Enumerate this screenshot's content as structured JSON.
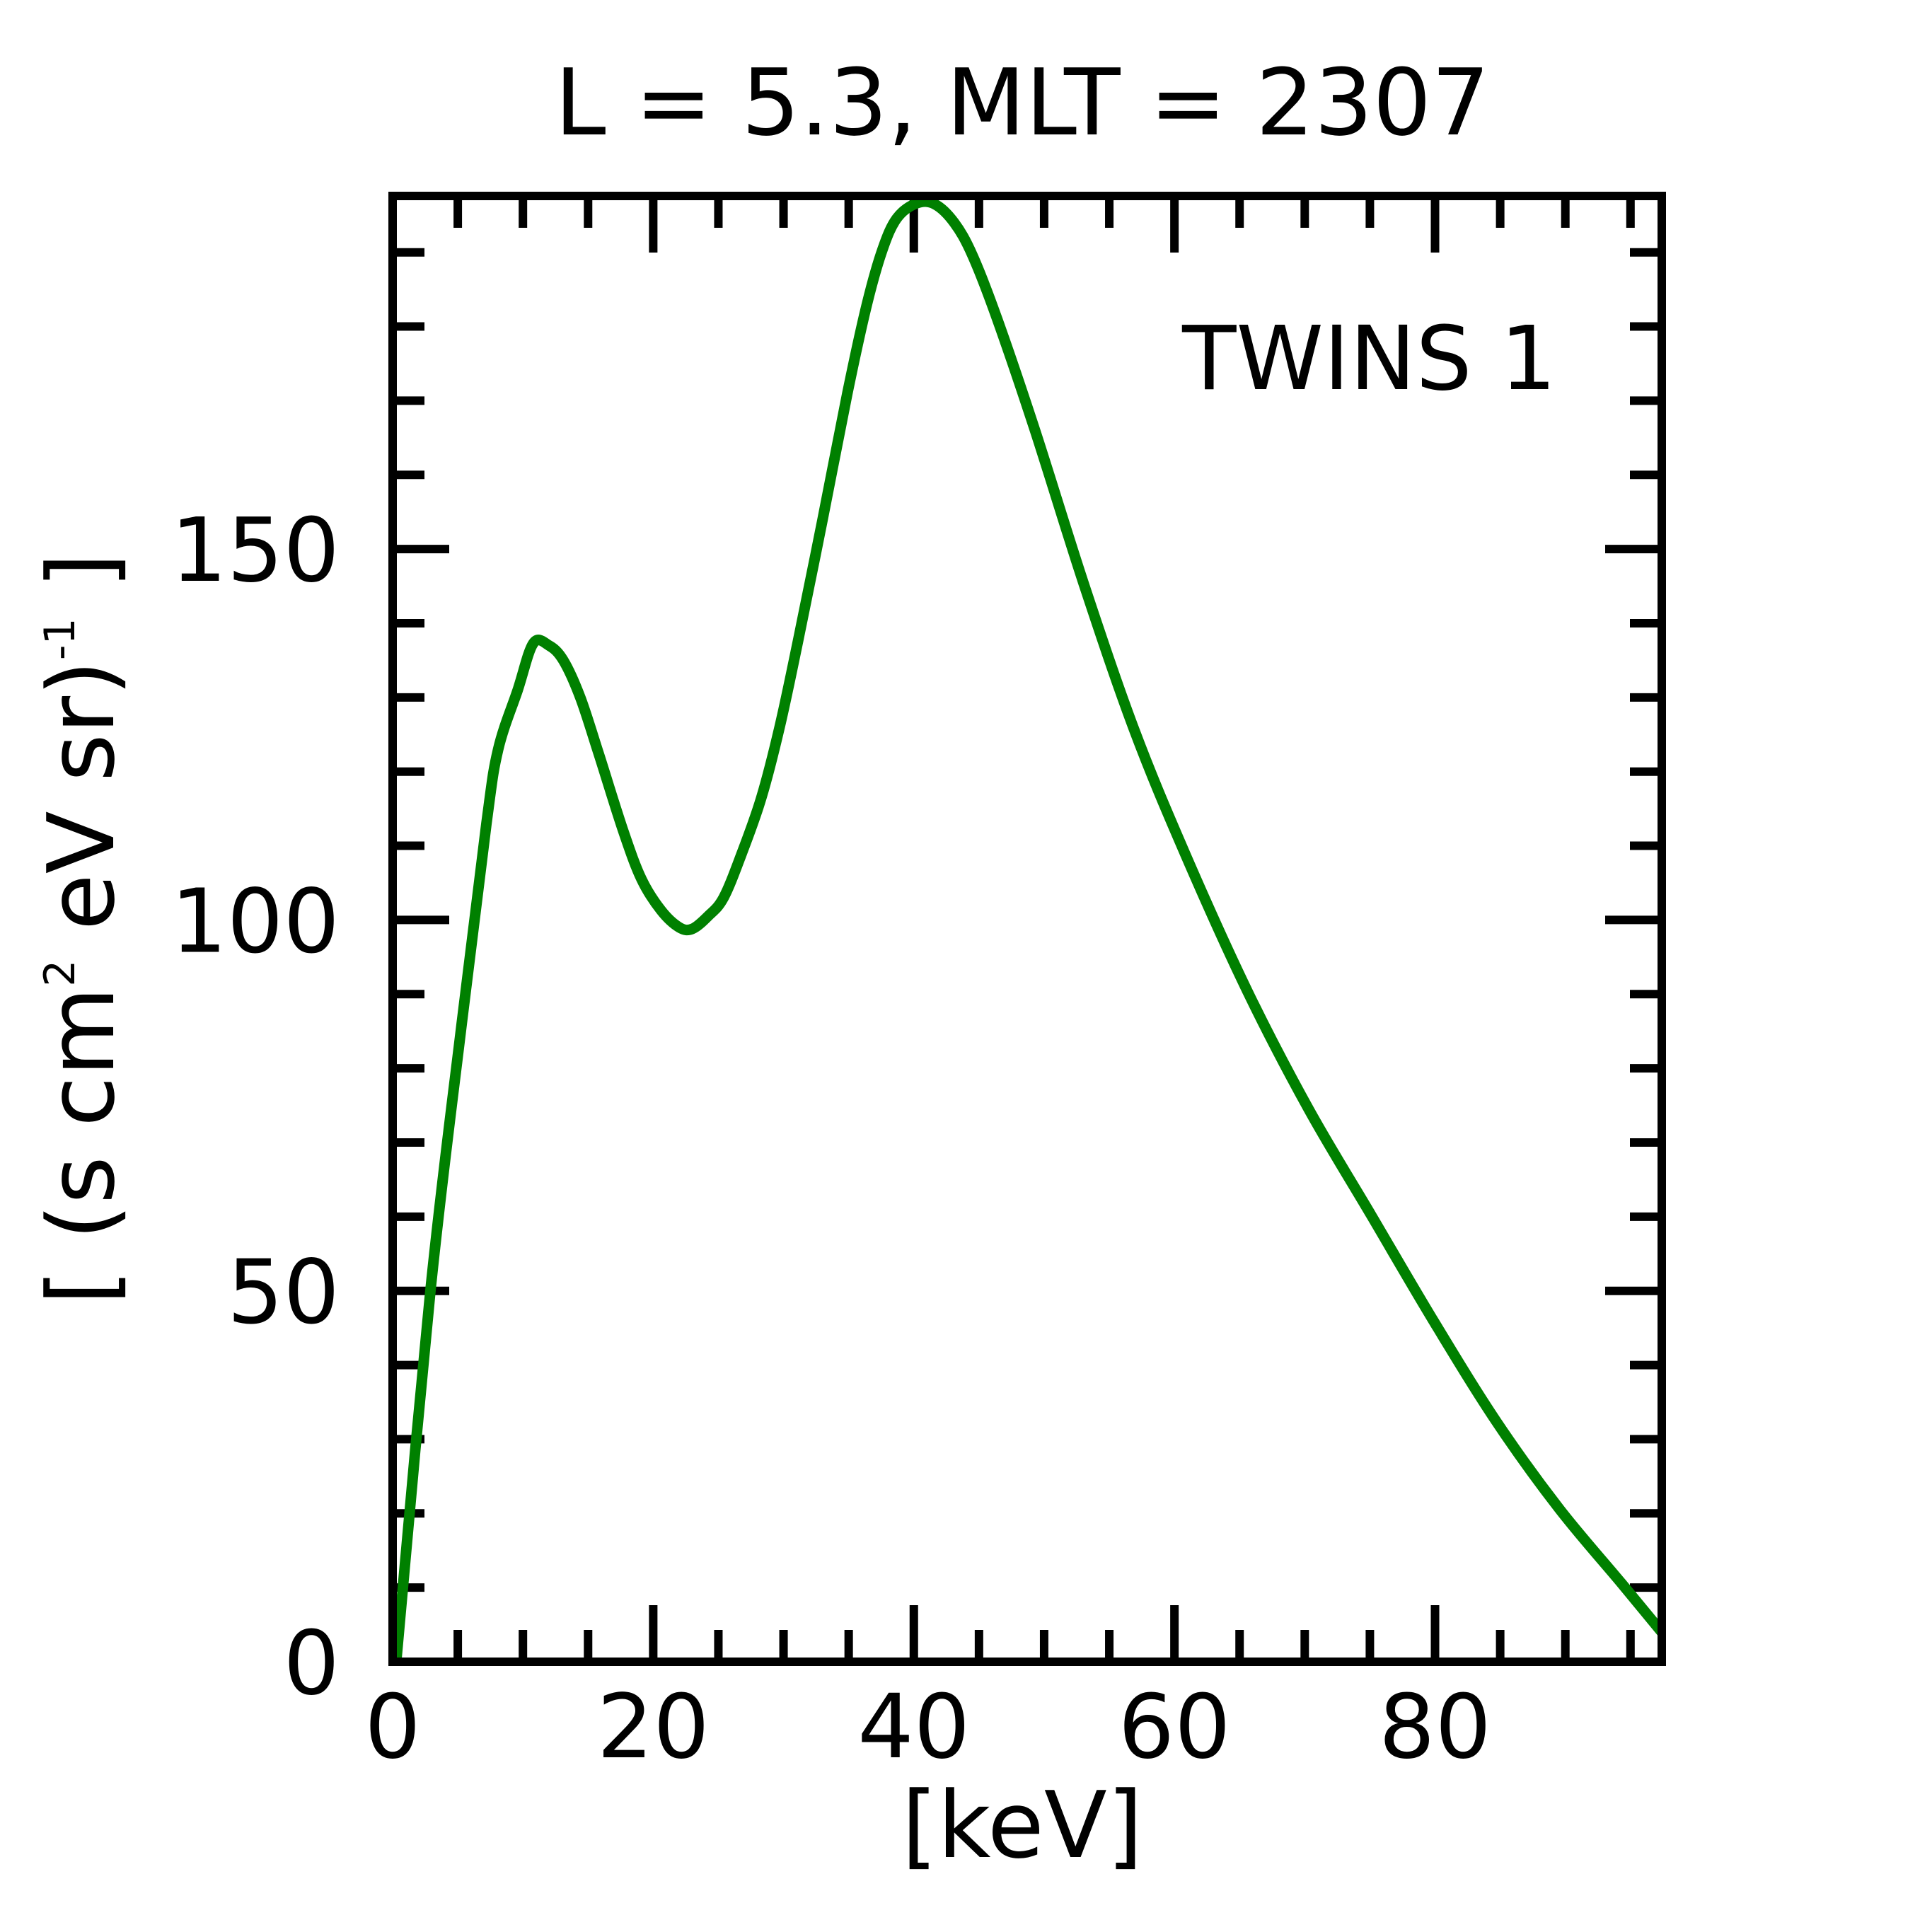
{
  "chart_data": {
    "type": "line",
    "title": "L =  5.3, MLT = 2307",
    "xlabel": "[keV]",
    "ylabel_main": "[ (s cm",
    "ylabel_sup1": "2",
    "ylabel_mid": " eV sr)",
    "ylabel_sup2": "-1",
    "ylabel_end": " ]",
    "xlim": [
      0,
      97.4
    ],
    "ylim": [
      0,
      197.6
    ],
    "xticks": [
      0,
      20,
      40,
      60,
      80
    ],
    "xtick_labels": [
      "0",
      "20",
      "40",
      "60",
      "80"
    ],
    "xminor_step": 5,
    "yticks": [
      0,
      50,
      100,
      150
    ],
    "ytick_labels": [
      "0",
      "50",
      "100",
      "150"
    ],
    "yminor_step": 10,
    "grid": false,
    "legend_placement": "top-right",
    "series": [
      {
        "name": "TWINS 1",
        "color": "#008000",
        "x": [
          0.3,
          2.9,
          5.3,
          7.2,
          8.1,
          9.6,
          10.8,
          12.0,
          13.1,
          14.4,
          15.8,
          17.7,
          19.1,
          20.6,
          22.0,
          23.0,
          24.2,
          25.4,
          26.8,
          28.3,
          29.7,
          31.1,
          33.0,
          34.9,
          36.4,
          37.6,
          38.7,
          40.2,
          41.6,
          43.1,
          44.5,
          46.4,
          49.3,
          53.1,
          56.9,
          60.8,
          65.6,
          70.3,
          75.1,
          79.9,
          84.7,
          89.5,
          94.3,
          97.4
        ],
        "y": [
          0.5,
          50,
          86,
          113,
          123,
          131,
          137.3,
          137,
          135,
          130,
          122.5,
          112,
          105.5,
          101.3,
          99,
          98.8,
          100.5,
          103,
          109,
          116.5,
          126,
          137.5,
          154,
          171,
          183,
          190.4,
          194.6,
          196.6,
          196.5,
          194,
          189.6,
          181,
          166,
          145,
          125.7,
          109,
          90.4,
          74.5,
          60.2,
          45.9,
          32.4,
          20.7,
          10.6,
          4.0
        ]
      }
    ]
  }
}
